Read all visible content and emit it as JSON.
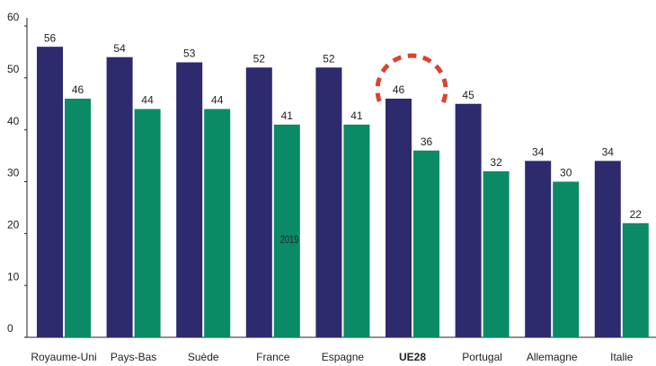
{
  "chart_data": {
    "type": "bar",
    "annotation": "2019",
    "categories": [
      "Royaume-Uni",
      "Pays-Bas",
      "Suède",
      "France",
      "Espagne",
      "UE28",
      "Portugal",
      "Allemagne",
      "Italie"
    ],
    "series": [
      {
        "color": "#2d2a6e",
        "values": [
          56,
          54,
          53,
          52,
          52,
          46,
          45,
          34,
          34
        ]
      },
      {
        "color": "#0b8a66",
        "values": [
          46,
          44,
          44,
          41,
          41,
          36,
          32,
          30,
          22
        ]
      }
    ],
    "highlight": "UE28",
    "highlight_color": "#d9432f",
    "ylim": [
      0,
      60
    ],
    "yticks": [
      0,
      10,
      20,
      30,
      40,
      50,
      60
    ]
  }
}
